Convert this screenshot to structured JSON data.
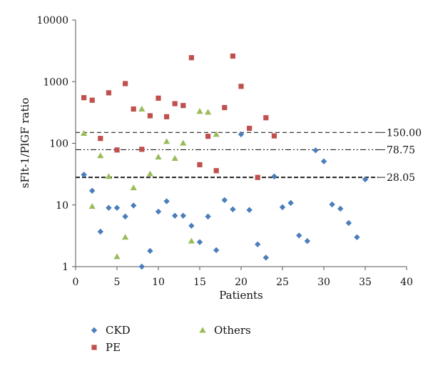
{
  "chart_data": {
    "type": "scatter",
    "xlabel": "Patients",
    "ylabel": "sFlt-1/PlGF ratio",
    "xlim": [
      0,
      40
    ],
    "ylim": [
      1,
      10000
    ],
    "yscale": "log",
    "xticks": [
      0,
      5,
      10,
      15,
      20,
      25,
      30,
      35,
      40
    ],
    "yticks": [
      1,
      10,
      100,
      1000,
      10000
    ],
    "xtick_labels": [
      "0",
      "5",
      "10",
      "15",
      "20",
      "25",
      "30",
      "35",
      "40"
    ],
    "ytick_labels": [
      "1",
      "10",
      "100",
      "1000",
      "10000"
    ],
    "grid": false,
    "legend_position": "bottom",
    "reference_lines": [
      {
        "value": 150,
        "label": "150.00",
        "style": "dashed"
      },
      {
        "value": 78.75,
        "label": "78.75",
        "style": "dash-dot-dot"
      },
      {
        "value": 28.05,
        "label": "28.05",
        "style": "bold-dashed"
      }
    ],
    "series": [
      {
        "name": "CKD",
        "marker": "diamond",
        "color": "#4a7ebb",
        "points": [
          [
            1,
            31
          ],
          [
            2,
            17
          ],
          [
            3,
            3.7
          ],
          [
            4,
            9
          ],
          [
            5,
            9
          ],
          [
            6,
            6.5
          ],
          [
            7,
            9.8
          ],
          [
            8,
            1.0
          ],
          [
            9,
            1.8
          ],
          [
            10,
            7.8
          ],
          [
            11,
            11.5
          ],
          [
            12,
            6.7
          ],
          [
            13,
            6.7
          ],
          [
            14,
            4.6
          ],
          [
            15,
            2.5
          ],
          [
            16,
            6.5
          ],
          [
            17,
            1.85
          ],
          [
            18,
            12
          ],
          [
            19,
            8.5
          ],
          [
            20,
            140
          ],
          [
            21,
            8.3
          ],
          [
            22,
            2.3
          ],
          [
            23,
            1.4
          ],
          [
            24,
            29
          ],
          [
            25,
            9.2
          ],
          [
            26,
            10.8
          ],
          [
            27,
            3.2
          ],
          [
            28,
            2.6
          ],
          [
            29,
            77
          ],
          [
            30,
            51
          ],
          [
            31,
            10.2
          ],
          [
            32,
            8.7
          ],
          [
            33,
            5.1
          ],
          [
            34,
            3.0
          ],
          [
            35,
            26
          ]
        ]
      },
      {
        "name": "PE",
        "marker": "square",
        "color": "#c0504d",
        "points": [
          [
            1,
            550
          ],
          [
            2,
            500
          ],
          [
            3,
            120
          ],
          [
            4,
            660
          ],
          [
            5,
            78
          ],
          [
            6,
            930
          ],
          [
            7,
            360
          ],
          [
            8,
            80
          ],
          [
            9,
            280
          ],
          [
            10,
            540
          ],
          [
            11,
            270
          ],
          [
            12,
            440
          ],
          [
            13,
            410
          ],
          [
            14,
            2450
          ],
          [
            15,
            45
          ],
          [
            16,
            130
          ],
          [
            17,
            36
          ],
          [
            18,
            380
          ],
          [
            19,
            2600
          ],
          [
            20,
            840
          ],
          [
            21,
            175
          ],
          [
            22,
            28
          ],
          [
            23,
            260
          ],
          [
            24,
            132
          ]
        ]
      },
      {
        "name": "Others",
        "marker": "triangle",
        "color": "#9bbb59",
        "points": [
          [
            1,
            145
          ],
          [
            2,
            9.5
          ],
          [
            3,
            63
          ],
          [
            4,
            29
          ],
          [
            5,
            1.45
          ],
          [
            6,
            3.0
          ],
          [
            7,
            19
          ],
          [
            8,
            360
          ],
          [
            9,
            32
          ],
          [
            10,
            60
          ],
          [
            11,
            107
          ],
          [
            12,
            57
          ],
          [
            13,
            101
          ],
          [
            14,
            2.6
          ],
          [
            15,
            330
          ],
          [
            16,
            320
          ],
          [
            17,
            140
          ]
        ]
      }
    ]
  }
}
